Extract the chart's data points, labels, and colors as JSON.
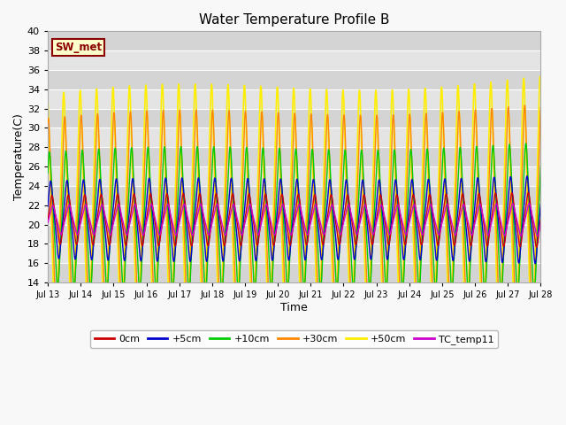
{
  "title": "Water Temperature Profile B",
  "xlabel": "Time",
  "ylabel": "Temperature(C)",
  "ylim": [
    14,
    40
  ],
  "x_tick_labels": [
    "Jul 13",
    "Jul 14",
    "Jul 15",
    "Jul 16",
    "Jul 17",
    "Jul 18",
    "Jul 19",
    "Jul 20",
    "Jul 21",
    "Jul 22",
    "Jul 23",
    "Jul 24",
    "Jul 25",
    "Jul 26",
    "Jul 27",
    "Jul 28"
  ],
  "series": [
    {
      "label": "0cm",
      "color": "#cc0000",
      "lw": 1.0,
      "zorder": 6,
      "mean": 20.5,
      "amp": 2.5,
      "phase_shift": 0.0
    },
    {
      "label": "+5cm",
      "color": "#0000cc",
      "lw": 1.0,
      "zorder": 5,
      "mean": 20.5,
      "amp": 4.0,
      "phase_shift": 0.08
    },
    {
      "label": "+10cm",
      "color": "#00cc00",
      "lw": 1.0,
      "zorder": 4,
      "mean": 20.5,
      "amp": 7.0,
      "phase_shift": 0.15
    },
    {
      "label": "+30cm",
      "color": "#ff8800",
      "lw": 1.0,
      "zorder": 3,
      "mean": 20.5,
      "amp": 10.5,
      "phase_shift": 0.22
    },
    {
      "label": "+50cm",
      "color": "#ffee00",
      "lw": 1.2,
      "zorder": 2,
      "mean": 20.5,
      "amp": 13.0,
      "phase_shift": 0.28
    },
    {
      "label": "TC_temp11",
      "color": "#cc00cc",
      "lw": 1.0,
      "zorder": 7,
      "mean": 20.5,
      "amp": 1.5,
      "phase_shift": -0.05
    }
  ],
  "sw_met_label": "SW_met",
  "sw_met_bg": "#ffffcc",
  "sw_met_text_color": "#8b0000",
  "sw_met_edge_color": "#8b0000",
  "band_colors": [
    "#d4d4d4",
    "#e4e4e4"
  ],
  "legend_colors": [
    "#cc0000",
    "#0000cc",
    "#00cc00",
    "#ff8800",
    "#ffee00",
    "#cc00cc"
  ],
  "legend_labels": [
    "0cm",
    "+5cm",
    "+10cm",
    "+30cm",
    "+50cm",
    "TC_temp11"
  ]
}
